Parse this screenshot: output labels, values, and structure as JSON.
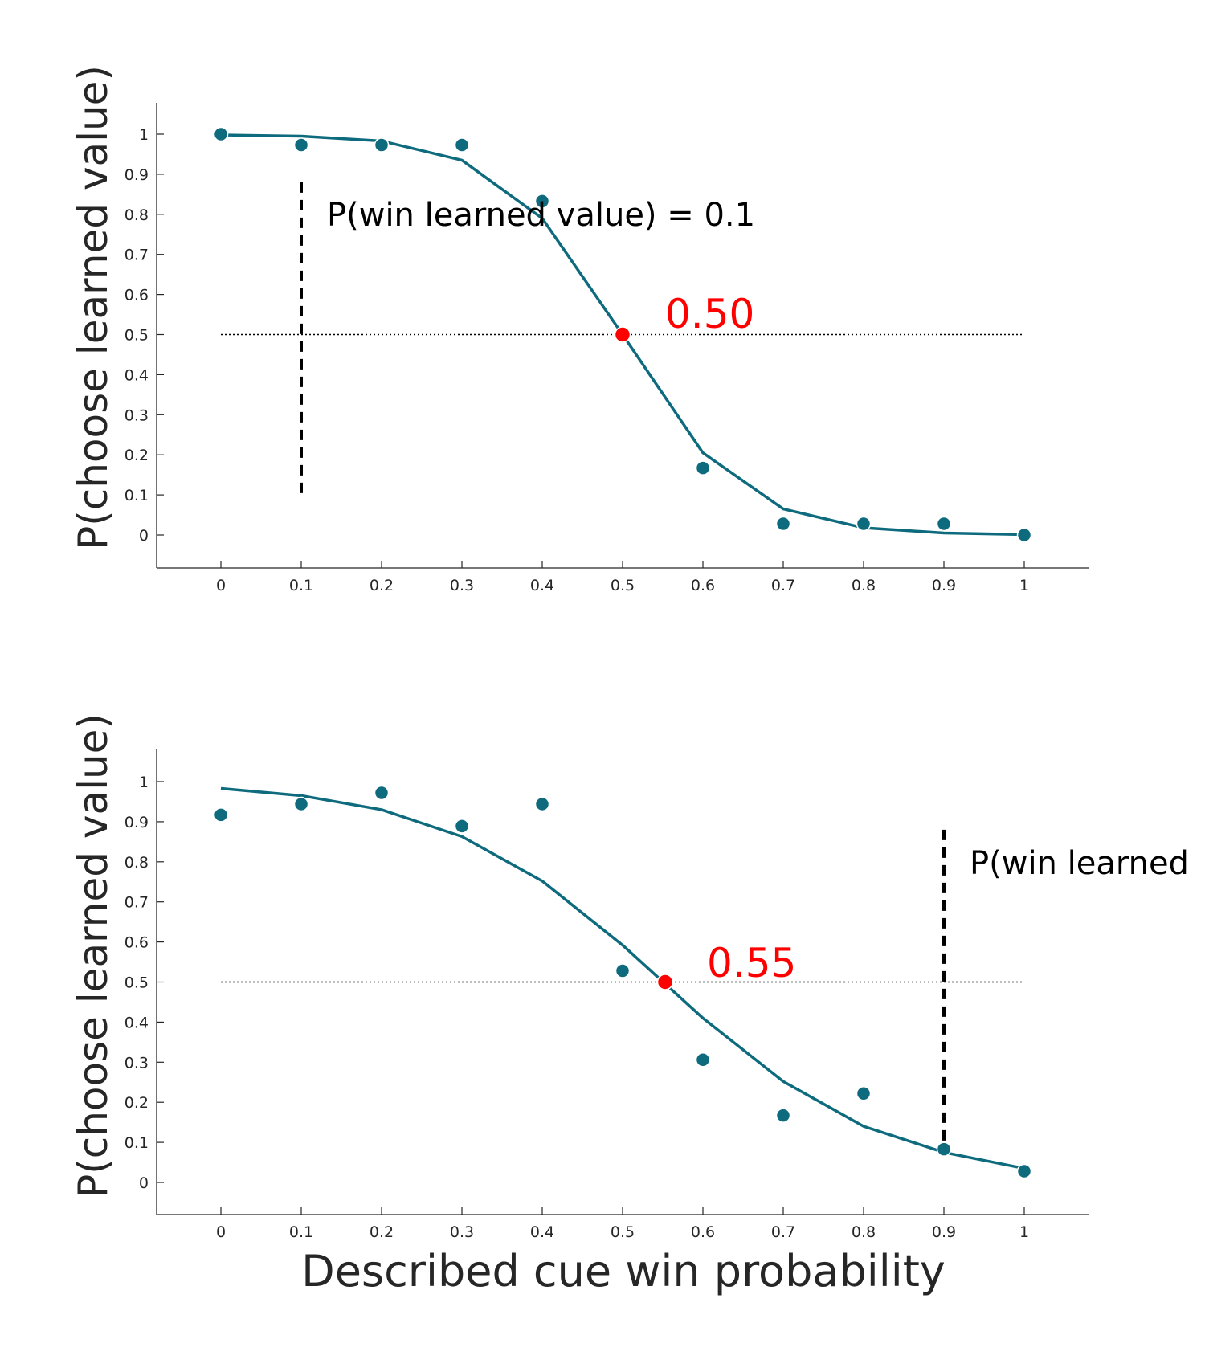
{
  "colors": {
    "series": "#0e6b7e",
    "pse_point": "#ff0000",
    "pse_text": "#ff0000",
    "axis": "#262626",
    "reference_line": "#000000"
  },
  "chart_data": [
    {
      "type": "scatter",
      "title": "",
      "xlabel": "",
      "ylabel": "P(choose learned value)",
      "xlim": [
        -0.08,
        1.08
      ],
      "ylim": [
        -0.08,
        1.08
      ],
      "xticks": [
        "0",
        "0.1",
        "0.2",
        "0.3",
        "0.4",
        "0.5",
        "0.6",
        "0.7",
        "0.8",
        "0.9",
        "1"
      ],
      "yticks": [
        "0",
        "0.1",
        "0.2",
        "0.3",
        "0.4",
        "0.5",
        "0.6",
        "0.7",
        "0.8",
        "0.9",
        "1"
      ],
      "grid": false,
      "points": {
        "x": [
          0,
          0.1,
          0.2,
          0.3,
          0.4,
          0.5,
          0.6,
          0.7,
          0.8,
          0.9,
          1
        ],
        "y": [
          1.0,
          0.973,
          0.973,
          0.973,
          0.833,
          0.5,
          0.167,
          0.028,
          0.028,
          0.028,
          0.0
        ]
      },
      "fit": {
        "x": [
          0,
          0.1,
          0.2,
          0.3,
          0.4,
          0.5,
          0.6,
          0.7,
          0.8,
          0.9,
          1
        ],
        "y": [
          0.998,
          0.995,
          0.983,
          0.935,
          0.79,
          0.5,
          0.205,
          0.065,
          0.018,
          0.005,
          0.001
        ]
      },
      "reference_y": 0.5,
      "pse": {
        "x": 0.5,
        "y": 0.5,
        "label": "0.50"
      },
      "learned_value_marker": {
        "x": 0.1,
        "y_range": [
          0.1,
          0.88
        ]
      },
      "annotation": "P(win learned value) = 0.1"
    },
    {
      "type": "scatter",
      "title": "",
      "xlabel": "Described cue win probability",
      "ylabel": "P(choose learned value)",
      "xlim": [
        -0.08,
        1.08
      ],
      "ylim": [
        -0.08,
        1.08
      ],
      "xticks": [
        "0",
        "0.1",
        "0.2",
        "0.3",
        "0.4",
        "0.5",
        "0.6",
        "0.7",
        "0.8",
        "0.9",
        "1"
      ],
      "yticks": [
        "0",
        "0.1",
        "0.2",
        "0.3",
        "0.4",
        "0.5",
        "0.6",
        "0.7",
        "0.8",
        "0.9",
        "1"
      ],
      "grid": false,
      "points": {
        "x": [
          0,
          0.1,
          0.2,
          0.3,
          0.4,
          0.5,
          0.6,
          0.7,
          0.8,
          0.9,
          1
        ],
        "y": [
          0.917,
          0.944,
          0.972,
          0.889,
          0.944,
          0.528,
          0.306,
          0.167,
          0.222,
          0.083,
          0.028
        ]
      },
      "fit": {
        "x": [
          0,
          0.1,
          0.2,
          0.3,
          0.4,
          0.5,
          0.6,
          0.7,
          0.8,
          0.9,
          1
        ],
        "y": [
          0.983,
          0.965,
          0.93,
          0.863,
          0.752,
          0.592,
          0.41,
          0.252,
          0.14,
          0.075,
          0.035
        ]
      },
      "reference_y": 0.5,
      "pse": {
        "x": 0.553,
        "y": 0.5,
        "label": "0.55"
      },
      "learned_value_marker": {
        "x": 0.9,
        "y_range": [
          0.08,
          0.88
        ]
      },
      "annotation": "P(win learned"
    }
  ]
}
